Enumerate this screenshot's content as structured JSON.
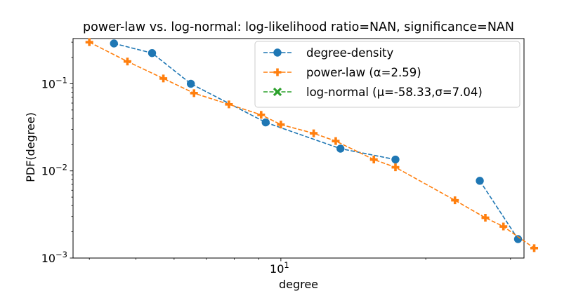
{
  "chart_data": {
    "type": "line",
    "title": "power-law vs. log-normal: log-likelihood ratio=NAN, significance=NAN",
    "xlabel": "degree",
    "ylabel": "PDF(degree)",
    "xscale": "log",
    "yscale": "log",
    "xlim": [
      3.7,
      32
    ],
    "ylim": [
      0.001,
      0.33
    ],
    "x_ticks": [
      {
        "value": 10,
        "label": "10^1"
      }
    ],
    "y_ticks": [
      {
        "value": 0.1,
        "label": "10^-1"
      },
      {
        "value": 0.01,
        "label": "10^-2"
      },
      {
        "value": 0.001,
        "label": "10^-3"
      }
    ],
    "legend_position": "top-right",
    "series": [
      {
        "name": "degree-density",
        "color": "#1f77b4",
        "marker": "circle",
        "linestyle": "dashed",
        "segments": [
          [
            [
              4.5,
              0.29
            ],
            [
              5.4,
              0.225
            ],
            [
              6.5,
              0.1
            ],
            [
              9.3,
              0.036
            ],
            [
              13.3,
              0.018
            ],
            [
              17.3,
              0.0135
            ]
          ],
          [
            [
              25.9,
              0.0077
            ],
            [
              31.1,
              0.00165
            ]
          ]
        ]
      },
      {
        "name": "power-law (α=2.59)",
        "color": "#ff7f0e",
        "marker": "plus",
        "linestyle": "dashed",
        "segments": [
          [
            [
              4.0,
              0.3
            ],
            [
              4.8,
              0.18
            ],
            [
              5.7,
              0.115
            ],
            [
              6.6,
              0.078
            ],
            [
              7.8,
              0.058
            ],
            [
              9.1,
              0.044
            ],
            [
              10.0,
              0.034
            ],
            [
              11.7,
              0.027
            ],
            [
              13.0,
              0.022
            ],
            [
              15.6,
              0.0135
            ],
            [
              17.3,
              0.011
            ],
            [
              23.0,
              0.0046
            ],
            [
              26.6,
              0.0029
            ],
            [
              29.0,
              0.0023
            ],
            [
              33.6,
              0.0013
            ]
          ]
        ]
      },
      {
        "name": "log-normal (μ=-58.33,σ=7.04)",
        "color": "#2ca02c",
        "marker": "x",
        "linestyle": "dashed",
        "segments": []
      }
    ]
  }
}
